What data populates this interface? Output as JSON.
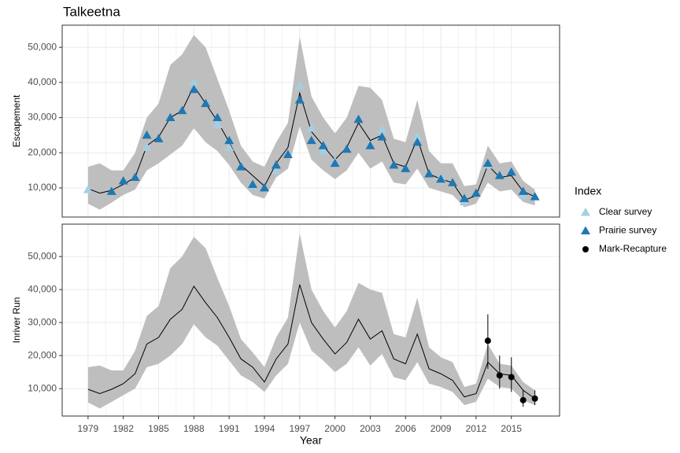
{
  "chart_data": [
    {
      "type": "scatter",
      "title": "Talkeetna",
      "ylabel": "Escapement",
      "legend_title": "Index",
      "legend": "right",
      "x": [
        1979,
        1980,
        1981,
        1982,
        1983,
        1984,
        1985,
        1986,
        1987,
        1988,
        1989,
        1990,
        1991,
        1992,
        1993,
        1994,
        1995,
        1996,
        1997,
        1998,
        1999,
        2000,
        2001,
        2002,
        2003,
        2004,
        2005,
        2006,
        2007,
        2008,
        2009,
        2010,
        2011,
        2012,
        2013,
        2014,
        2015,
        2016,
        2017
      ],
      "xlim": [
        1976.8,
        2019.1
      ],
      "ylim": [
        1700,
        56300
      ],
      "yticks": [
        {
          "value": 10000,
          "label": "10,000"
        },
        {
          "value": 20000,
          "label": "20,000"
        },
        {
          "value": 30000,
          "label": "30,000"
        },
        {
          "value": 40000,
          "label": "40,000"
        },
        {
          "value": 50000,
          "label": "50,000"
        }
      ],
      "grid": true,
      "line_color": "#000000",
      "band_color": "#bebebe",
      "line": [
        9800,
        8500,
        9300,
        11000,
        13000,
        22000,
        24500,
        30000,
        32000,
        39000,
        34000,
        29000,
        23000,
        16500,
        13500,
        10500,
        17000,
        21500,
        37000,
        26000,
        22000,
        18000,
        21500,
        28500,
        23500,
        25000,
        17000,
        16000,
        24000,
        14000,
        12500,
        11500,
        6500,
        7800,
        16500,
        13000,
        13500,
        9000,
        7500
      ],
      "lower": [
        5500,
        3800,
        5800,
        8000,
        9500,
        15000,
        17000,
        19500,
        22000,
        27000,
        23000,
        20500,
        16500,
        11500,
        8000,
        7000,
        13000,
        15500,
        27500,
        18000,
        15000,
        12500,
        15000,
        20000,
        15500,
        17500,
        11500,
        11000,
        15500,
        10000,
        9000,
        8000,
        4500,
        5500,
        11500,
        9000,
        9500,
        6000,
        5000
      ],
      "upper": [
        16000,
        17000,
        15000,
        15000,
        20000,
        30000,
        34000,
        45000,
        48000,
        53500,
        50000,
        41000,
        32000,
        22000,
        17500,
        16000,
        23000,
        28500,
        53000,
        36000,
        30000,
        25500,
        30000,
        39000,
        38500,
        35000,
        24000,
        23000,
        35000,
        20500,
        17000,
        17000,
        10500,
        11000,
        22000,
        17000,
        17500,
        12000,
        9500
      ],
      "series": [
        {
          "name": "Clear survey",
          "color": "#a6cee3",
          "shape": "triangle",
          "x": [
            1979,
            1984,
            1988,
            1990,
            1991,
            1993,
            1995,
            1997,
            1998,
            1999,
            2000,
            2004,
            2007,
            2009,
            2011,
            2013,
            2014,
            2016,
            2017
          ],
          "values": [
            9500,
            21500,
            40000,
            28000,
            21500,
            10500,
            15000,
            39000,
            27000,
            20500,
            17500,
            26500,
            24500,
            13000,
            6000,
            16500,
            13500,
            8000,
            7500
          ]
        },
        {
          "name": "Prairie survey",
          "color": "#1f78b4",
          "shape": "triangle",
          "x": [
            1981,
            1982,
            1983,
            1984,
            1985,
            1986,
            1987,
            1988,
            1989,
            1990,
            1991,
            1992,
            1993,
            1994,
            1995,
            1996,
            1997,
            1998,
            1999,
            2000,
            2001,
            2002,
            2003,
            2004,
            2005,
            2006,
            2007,
            2008,
            2009,
            2010,
            2011,
            2012,
            2013,
            2014,
            2015,
            2016,
            2017
          ],
          "values": [
            9000,
            12000,
            13000,
            25000,
            24000,
            30000,
            32000,
            38000,
            34000,
            30000,
            23500,
            16000,
            11000,
            10000,
            16500,
            19500,
            35000,
            23500,
            22000,
            17000,
            21000,
            29500,
            22000,
            24500,
            16500,
            15500,
            23000,
            14000,
            12500,
            11500,
            7000,
            8500,
            17000,
            13500,
            14500,
            9000,
            7500
          ]
        }
      ]
    },
    {
      "type": "scatter",
      "xlabel": "Year",
      "ylabel": "Inriver Run",
      "x": [
        1979,
        1980,
        1981,
        1982,
        1983,
        1984,
        1985,
        1986,
        1987,
        1988,
        1989,
        1990,
        1991,
        1992,
        1993,
        1994,
        1995,
        1996,
        1997,
        1998,
        1999,
        2000,
        2001,
        2002,
        2003,
        2004,
        2005,
        2006,
        2007,
        2008,
        2009,
        2010,
        2011,
        2012,
        2013,
        2014,
        2015,
        2016,
        2017
      ],
      "xlim": [
        1976.8,
        2019.1
      ],
      "xticks": [
        1979,
        1982,
        1985,
        1988,
        1991,
        1994,
        1997,
        2000,
        2003,
        2006,
        2009,
        2012,
        2015
      ],
      "ylim": [
        1700,
        59800
      ],
      "yticks": [
        {
          "value": 10000,
          "label": "10,000"
        },
        {
          "value": 20000,
          "label": "20,000"
        },
        {
          "value": 30000,
          "label": "30,000"
        },
        {
          "value": 40000,
          "label": "40,000"
        },
        {
          "value": 50000,
          "label": "50,000"
        }
      ],
      "grid": true,
      "line_color": "#000000",
      "band_color": "#bebebe",
      "line": [
        9800,
        8500,
        9800,
        11500,
        14500,
        23500,
        25500,
        31000,
        34000,
        41000,
        36000,
        31500,
        25500,
        19000,
        16500,
        12000,
        19000,
        23500,
        41500,
        30000,
        25000,
        20500,
        24000,
        31000,
        25000,
        27500,
        19000,
        17500,
        26500,
        16000,
        14500,
        12500,
        7500,
        8500,
        18000,
        14500,
        14000,
        9500,
        7000
      ],
      "lower": [
        5800,
        4000,
        6000,
        8000,
        10000,
        16500,
        17500,
        20000,
        23500,
        29500,
        25500,
        23000,
        18500,
        14000,
        12000,
        9000,
        14000,
        17500,
        30000,
        21500,
        18500,
        15000,
        17500,
        22500,
        17000,
        20500,
        13500,
        12500,
        18000,
        11500,
        10500,
        9000,
        5000,
        6000,
        13000,
        10500,
        10000,
        6500,
        5000
      ],
      "upper": [
        16500,
        17000,
        15500,
        15500,
        21500,
        32000,
        35000,
        46500,
        50000,
        56000,
        52500,
        43500,
        35000,
        25000,
        21000,
        16500,
        25500,
        31500,
        57000,
        40000,
        33500,
        28500,
        33500,
        42000,
        40000,
        39000,
        26500,
        25500,
        37500,
        22500,
        19500,
        18000,
        10500,
        11500,
        23500,
        17500,
        17000,
        12000,
        9500
      ],
      "series": [
        {
          "name": "Mark-Recapture",
          "color": "#000000",
          "shape": "circle",
          "x": [
            2013,
            2014,
            2015,
            2016,
            2017
          ],
          "values": [
            24500,
            14000,
            13500,
            6500,
            7000
          ],
          "lower": [
            16000,
            10000,
            9000,
            4500,
            5000
          ],
          "upper": [
            32500,
            20000,
            19500,
            9500,
            9500
          ]
        }
      ]
    }
  ]
}
